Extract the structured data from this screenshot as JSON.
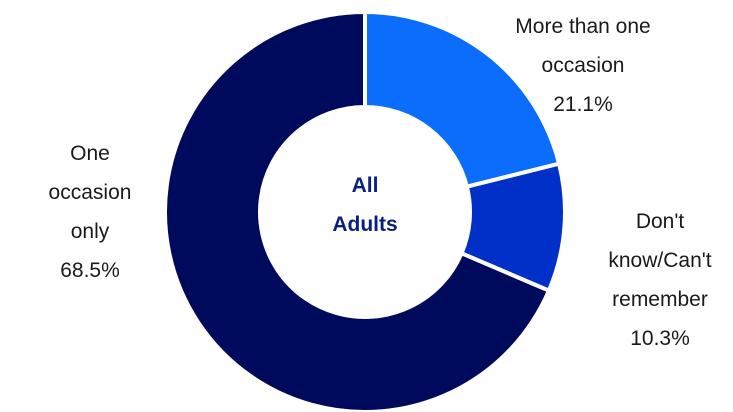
{
  "chart_data": {
    "type": "pie",
    "center_label": [
      "All",
      "Adults"
    ],
    "slices": [
      {
        "label_lines": [
          "More than one",
          "occasion"
        ],
        "value_text": "21.1%",
        "value": 21.1,
        "color": "#0b6dfb"
      },
      {
        "label_lines": [
          "Don't",
          "know/Can't",
          "remember"
        ],
        "value_text": "10.3%",
        "value": 10.3,
        "color": "#0030c8"
      },
      {
        "label_lines": [
          "One",
          "occasion",
          "only"
        ],
        "value_text": "68.5%",
        "value": 68.5,
        "color": "#000a5c"
      }
    ],
    "legend": "none"
  }
}
